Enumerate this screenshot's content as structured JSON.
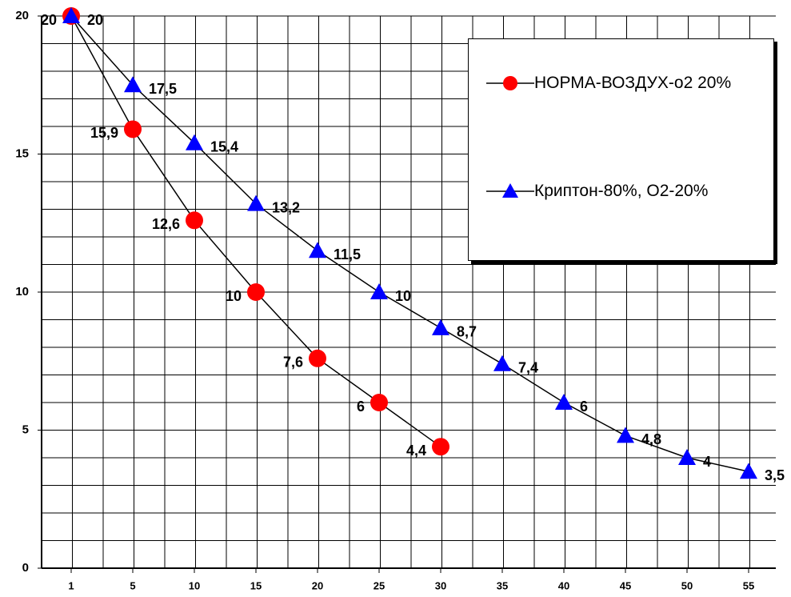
{
  "chart_data": {
    "type": "line",
    "categories": [
      "1",
      "5",
      "10",
      "15",
      "20",
      "25",
      "30",
      "35",
      "40",
      "45",
      "50",
      "55"
    ],
    "series": [
      {
        "name": "НОРМА-ВОЗДУХ-о2 20%",
        "color": "#ff0000",
        "marker": "circle",
        "values": [
          20,
          15.9,
          12.6,
          10,
          7.6,
          6,
          4.4,
          null,
          null,
          null,
          null,
          null
        ],
        "value_labels": [
          "20",
          "15,9",
          "12,6",
          "10",
          "7,6",
          "6",
          "4,4",
          null,
          null,
          null,
          null,
          null
        ]
      },
      {
        "name": "Криптон-80%, О2-20%",
        "color": "#0000ff",
        "marker": "triangle",
        "values": [
          20,
          17.5,
          15.4,
          13.2,
          11.5,
          10,
          8.7,
          7.4,
          6,
          4.8,
          4,
          3.5
        ],
        "value_labels": [
          "20",
          "17,5",
          "15,4",
          "13,2",
          "11,5",
          "10",
          "8,7",
          "7,4",
          "6",
          "4,8",
          "4",
          "3,5"
        ]
      }
    ],
    "ylim": [
      0,
      20
    ],
    "yticks": [
      0,
      5,
      10,
      15,
      20
    ],
    "y_minor_ticks": [
      1,
      2,
      3,
      4,
      6,
      7,
      8,
      9,
      11,
      12,
      13,
      14,
      16,
      17,
      18,
      19
    ],
    "grid": true,
    "legend": "upper right"
  }
}
